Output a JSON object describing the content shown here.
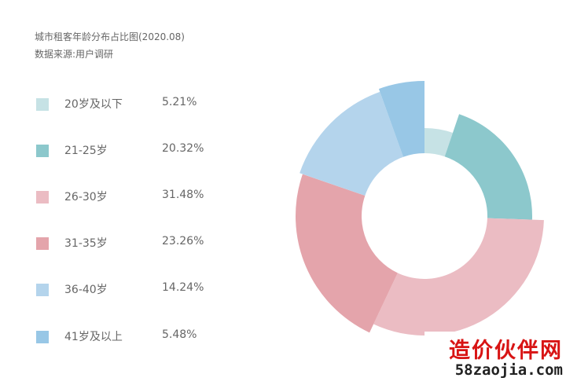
{
  "header": {
    "title": "城市租客年龄分布占比图(2020.08)",
    "source": "数据来源:用户调研"
  },
  "chart_data": {
    "type": "pie",
    "variant": "donut",
    "title": "城市租客年龄分布占比图(2020.08)",
    "subtitle": "数据来源:用户调研",
    "legend_position": "left",
    "categories": [
      "20岁及以下",
      "21-25岁",
      "26-30岁",
      "31-35岁",
      "36-40岁",
      "41岁及以上"
    ],
    "values": [
      5.21,
      20.32,
      31.48,
      23.26,
      14.24,
      5.48
    ],
    "value_labels": [
      "5.21%",
      "20.32%",
      "31.48%",
      "23.26%",
      "14.24%",
      "5.48%"
    ],
    "colors": [
      "#c6e2e5",
      "#8cc8cc",
      "#ebbcc3",
      "#e4a4ab",
      "#b4d4ec",
      "#98c7e6"
    ],
    "segments": [
      {
        "label": "20岁及以下",
        "value_text": "5.21%"
      },
      {
        "label": "21-25岁",
        "value_text": "20.32%"
      },
      {
        "label": "26-30岁",
        "value_text": "31.48%"
      },
      {
        "label": "31-35岁",
        "value_text": "23.26%"
      },
      {
        "label": "36-40岁",
        "value_text": "14.24%"
      },
      {
        "label": "41岁及以上",
        "value_text": "5.48%"
      }
    ]
  },
  "watermark": {
    "line1": "造价伙伴网",
    "line2": "58zaojia.com"
  }
}
